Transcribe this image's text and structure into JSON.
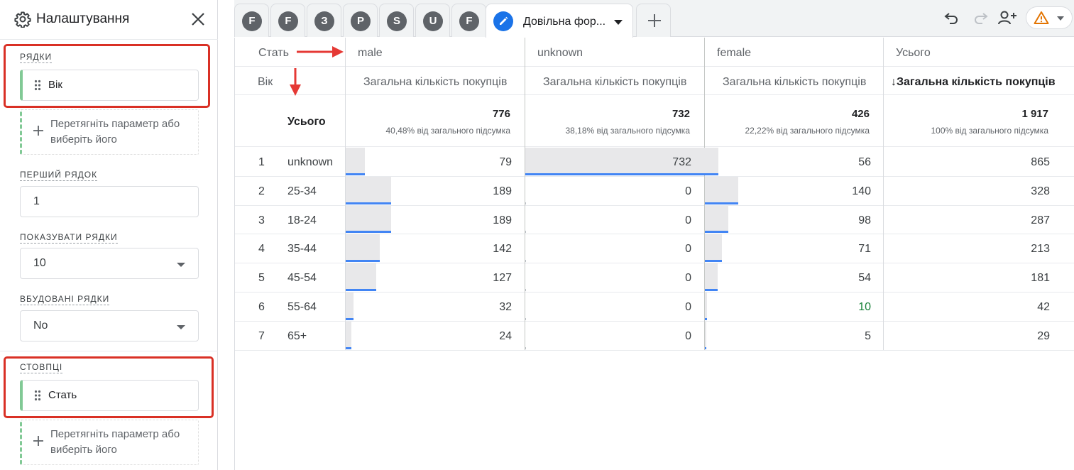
{
  "panel": {
    "title": "Налаштування",
    "rows_label": "РЯДКИ",
    "rows_chip": "Вік",
    "dropzone_text": "Перетягніть параметр або виберіть його",
    "first_row_label": "ПЕРШИЙ РЯДОК",
    "first_row_value": "1",
    "show_rows_label": "ПОКАЗУВАТИ РЯДКИ",
    "show_rows_value": "10",
    "nested_rows_label": "ВБУДОВАНІ РЯДКИ",
    "nested_rows_value": "No",
    "columns_label": "СТОВПЦІ",
    "columns_chip": "Стать"
  },
  "tabs": {
    "letters": [
      "F",
      "F",
      "З",
      "P",
      "S",
      "U",
      "F"
    ],
    "active_label": "Довільна фор..."
  },
  "table": {
    "column_dim_label": "Стать",
    "row_dim_label": "Вік",
    "columns": [
      "male",
      "unknown",
      "female",
      "Усього"
    ],
    "metric_label": "Загальна кількість покупців",
    "sorted_metric_label": "↓Загальна кількість покупців",
    "totals_label": "Усього",
    "totals": [
      "776",
      "732",
      "426",
      "1 917"
    ],
    "totals_pct": [
      "40,48% від загального підсумка",
      "38,18% від загального підсумка",
      "22,22% від загального підсумка",
      "100% від загального підсумка"
    ],
    "rows": [
      {
        "idx": "1",
        "age": "unknown",
        "male": 79,
        "unknown": 732,
        "female": 56,
        "total": 865
      },
      {
        "idx": "2",
        "age": "25-34",
        "male": 189,
        "unknown": 0,
        "female": 140,
        "total": 328
      },
      {
        "idx": "3",
        "age": "18-24",
        "male": 189,
        "unknown": 0,
        "female": 98,
        "total": 287
      },
      {
        "idx": "4",
        "age": "35-44",
        "male": 142,
        "unknown": 0,
        "female": 71,
        "total": 213
      },
      {
        "idx": "5",
        "age": "45-54",
        "male": 127,
        "unknown": 0,
        "female": 54,
        "total": 181
      },
      {
        "idx": "6",
        "age": "55-64",
        "male": 32,
        "unknown": 0,
        "female": 10,
        "total": 42
      },
      {
        "idx": "7",
        "age": "65+",
        "male": 24,
        "unknown": 0,
        "female": 5,
        "total": 29
      }
    ]
  },
  "colors": {
    "accent_blue": "#1a73e8",
    "bar_blue": "#4285f4",
    "chip_green": "#81c995",
    "highlight_red": "#d93025",
    "warning_orange": "#e37400"
  }
}
